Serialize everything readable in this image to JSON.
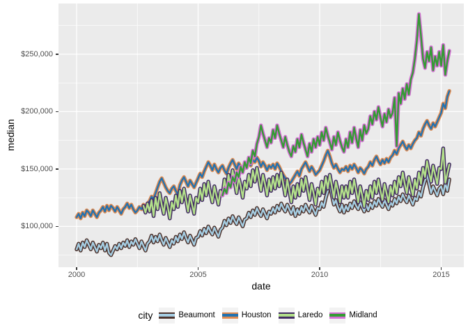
{
  "figure": {
    "background_color": "#FFFFFF",
    "panel_background_color": "#EBEBEB",
    "gridline_color": "#FFFFFF",
    "tick_mark_color": "#333333",
    "tick_label_color": "#4D4D4D",
    "y_axis": {
      "title": "median",
      "ticks": [
        {
          "value": 100000,
          "label": "$100,000"
        },
        {
          "value": 150000,
          "label": "$150,000"
        },
        {
          "value": 200000,
          "label": "$200,000"
        },
        {
          "value": 250000,
          "label": "$250,000"
        }
      ]
    },
    "x_axis": {
      "title": "date",
      "ticks": [
        {
          "value": 2000,
          "label": "2000"
        },
        {
          "value": 2005,
          "label": "2005"
        },
        {
          "value": 2010,
          "label": "2010"
        },
        {
          "value": 2015,
          "label": "2015"
        }
      ]
    },
    "legend": {
      "title": "city",
      "key_background_color": "#F2F2F2",
      "items": [
        {
          "label": "Beaumont",
          "outline_color": "#4E342E",
          "core_color": "#A6CEE3"
        },
        {
          "label": "Houston",
          "outline_color": "#DF8A50",
          "core_color": "#2272B0"
        },
        {
          "label": "Laredo",
          "outline_color": "#432C63",
          "core_color": "#B2DF8A"
        },
        {
          "label": "Midland",
          "outline_color": "#D46ED4",
          "core_color": "#349B34"
        }
      ]
    }
  },
  "chart_data": {
    "type": "line",
    "title": "",
    "xlabel": "date",
    "ylabel": "median",
    "xlim": [
      1999.255,
      2015.93
    ],
    "ylim_usd": [
      64500,
      294200
    ],
    "grid": true,
    "legend_position": "bottom",
    "x_major_gridlines": [
      2000,
      2005,
      2010,
      2015
    ],
    "x_minor_gridlines": [
      2002.5,
      2007.5,
      2012.5
    ],
    "y_major_gridlines_usd": [
      100000,
      150000,
      200000,
      250000
    ],
    "y_minor_gridlines_usd": [
      75000,
      125000,
      175000,
      225000,
      275000
    ],
    "series_value_unit": "USD_thousand_monthly_median",
    "series": [
      {
        "name": "Beaumont",
        "outline_color": "#4E342E",
        "core_color": "#A6CEE3",
        "start_year": 2000,
        "start_month": 1,
        "values_usd_thousands": [
          80,
          85,
          79,
          86,
          82,
          88,
          84,
          80,
          86,
          82,
          78,
          84,
          81,
          86,
          79,
          85,
          77,
          75,
          79,
          83,
          80,
          85,
          81,
          86,
          83,
          88,
          82,
          87,
          84,
          89,
          85,
          81,
          87,
          83,
          79,
          85,
          87,
          92,
          86,
          91,
          87,
          93,
          88,
          84,
          90,
          86,
          82,
          88,
          85,
          91,
          87,
          93,
          89,
          95,
          90,
          86,
          92,
          88,
          84,
          90,
          91,
          96,
          92,
          98,
          94,
          100,
          96,
          93,
          99,
          95,
          91,
          97,
          99,
          105,
          101,
          107,
          103,
          109,
          105,
          102,
          108,
          104,
          100,
          106,
          107,
          112,
          108,
          114,
          110,
          116,
          112,
          109,
          115,
          111,
          107,
          113,
          111,
          116,
          112,
          118,
          114,
          120,
          116,
          113,
          119,
          115,
          111,
          117,
          109,
          115,
          111,
          117,
          113,
          119,
          115,
          112,
          118,
          114,
          110,
          116,
          115,
          121,
          117,
          125,
          131,
          137,
          127,
          119,
          123,
          117,
          113,
          119,
          112,
          118,
          114,
          120,
          116,
          122,
          118,
          115,
          121,
          117,
          113,
          119,
          114,
          120,
          116,
          122,
          118,
          124,
          120,
          117,
          123,
          119,
          115,
          121,
          118,
          124,
          120,
          126,
          122,
          128,
          124,
          121,
          127,
          123,
          119,
          125,
          123,
          130,
          126,
          134,
          140,
          145,
          137,
          129,
          135,
          131,
          127,
          133,
          135,
          128,
          138,
          131,
          141
        ]
      },
      {
        "name": "Houston",
        "outline_color": "#DF8A50",
        "core_color": "#2272B0",
        "start_year": 2000,
        "start_month": 1,
        "values_usd_thousands": [
          108,
          111,
          107,
          112,
          109,
          114,
          112,
          109,
          114,
          111,
          108,
          112,
          114,
          117,
          113,
          118,
          114,
          118,
          116,
          113,
          117,
          114,
          111,
          115,
          117,
          120,
          116,
          119,
          115,
          112,
          114,
          117,
          115,
          119,
          116,
          120,
          122,
          126,
          124,
          129,
          134,
          139,
          142,
          138,
          134,
          131,
          129,
          133,
          135,
          131,
          128,
          136,
          140,
          143,
          139,
          135,
          140,
          137,
          134,
          138,
          142,
          146,
          143,
          148,
          152,
          156,
          153,
          149,
          154,
          150,
          147,
          151,
          153,
          149,
          146,
          151,
          155,
          158,
          154,
          150,
          155,
          152,
          148,
          152,
          154,
          157,
          153,
          158,
          156,
          160,
          157,
          152,
          156,
          153,
          149,
          153,
          151,
          154,
          150,
          155,
          152,
          148,
          145,
          142,
          139,
          137,
          139,
          142,
          145,
          148,
          144,
          150,
          153,
          156,
          152,
          148,
          152,
          149,
          145,
          147,
          149,
          153,
          157,
          162,
          166,
          161,
          155,
          151,
          154,
          150,
          147,
          150,
          149,
          152,
          148,
          153,
          150,
          154,
          151,
          147,
          151,
          149,
          146,
          150,
          152,
          156,
          153,
          158,
          161,
          157,
          154,
          158,
          155,
          159,
          156,
          160,
          162,
          166,
          163,
          168,
          171,
          174,
          170,
          167,
          171,
          168,
          172,
          175,
          177,
          182,
          179,
          185,
          189,
          192,
          188,
          185,
          190,
          187,
          191,
          195,
          199,
          207,
          203,
          213,
          218
        ]
      },
      {
        "name": "Laredo",
        "outline_color": "#432C63",
        "core_color": "#B2DF8A",
        "start_year": 2002,
        "start_month": 10,
        "values_usd_thousands": [
          118,
          112,
          120,
          113,
          123,
          109,
          125,
          115,
          129,
          119,
          111,
          125,
          117,
          107,
          121,
          115,
          127,
          117,
          131,
          121,
          133,
          123,
          113,
          127,
          119,
          111,
          125,
          121,
          133,
          123,
          137,
          127,
          139,
          129,
          121,
          135,
          127,
          119,
          131,
          127,
          141,
          131,
          145,
          135,
          149,
          139,
          129,
          143,
          135,
          125,
          139,
          133,
          145,
          135,
          149,
          139,
          151,
          141,
          131,
          145,
          137,
          127,
          141,
          131,
          143,
          133,
          145,
          135,
          147,
          137,
          127,
          141,
          131,
          121,
          135,
          125,
          137,
          127,
          141,
          131,
          143,
          133,
          123,
          137,
          129,
          119,
          133,
          127,
          139,
          129,
          143,
          133,
          145,
          135,
          125,
          139,
          131,
          121,
          135,
          125,
          135,
          125,
          139,
          129,
          141,
          131,
          121,
          135,
          127,
          117,
          131,
          123,
          135,
          125,
          139,
          129,
          141,
          131,
          123,
          137,
          129,
          121,
          135,
          127,
          139,
          129,
          143,
          135,
          147,
          137,
          129,
          143,
          135,
          127,
          141,
          133,
          147,
          137,
          151,
          143,
          157,
          147,
          139,
          153,
          145,
          137,
          151,
          150,
          168,
          138,
          146,
          154
        ]
      },
      {
        "name": "Midland",
        "outline_color": "#D46ED4",
        "core_color": "#349B34",
        "start_year": 2006,
        "start_month": 1,
        "values_usd_thousands": [
          127,
          133,
          129,
          138,
          134,
          143,
          139,
          147,
          143,
          152,
          147,
          156,
          151,
          160,
          155,
          166,
          161,
          172,
          178,
          188,
          181,
          175,
          169,
          177,
          173,
          184,
          177,
          188,
          181,
          175,
          169,
          178,
          171,
          165,
          161,
          170,
          165,
          176,
          169,
          180,
          173,
          167,
          161,
          172,
          165,
          176,
          169,
          178,
          171,
          182,
          175,
          186,
          179,
          173,
          167,
          178,
          171,
          182,
          175,
          169,
          165,
          176,
          169,
          182,
          173,
          186,
          177,
          169,
          184,
          175,
          188,
          181,
          185,
          196,
          189,
          200,
          193,
          204,
          195,
          187,
          198,
          191,
          202,
          195,
          199,
          212,
          170,
          216,
          207,
          220,
          211,
          224,
          215,
          228,
          234,
          246,
          262,
          285,
          266,
          246,
          238,
          252,
          244,
          256,
          236,
          248,
          240,
          252,
          240,
          258,
          232,
          244,
          253
        ]
      }
    ]
  }
}
